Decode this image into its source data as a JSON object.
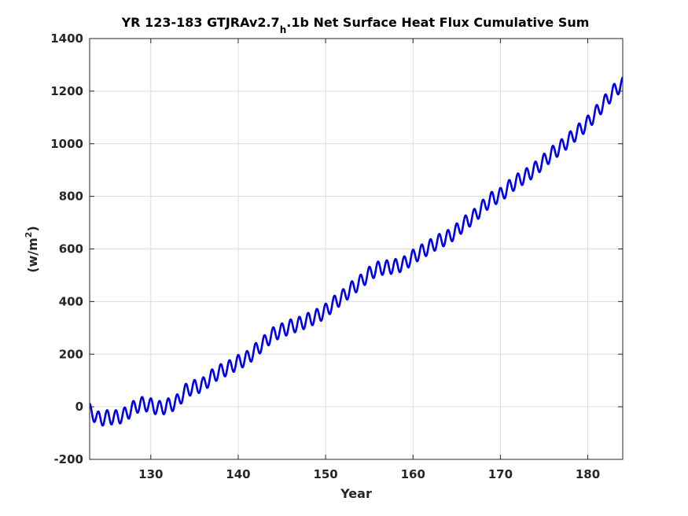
{
  "chart_data": {
    "type": "line",
    "title_parts": {
      "before_subscript": "YR 123-183 GTJRAv2.7",
      "subscript": "h",
      "after_subscript": ".1b Net Surface Heat Flux  Cumulative Sum"
    },
    "xlabel": "Year",
    "ylabel_parts": {
      "base": "(w/m",
      "superscript": "2",
      "close": ")"
    },
    "xlim": [
      123,
      184
    ],
    "ylim": [
      -200,
      1400
    ],
    "x_ticks": [
      130,
      140,
      150,
      160,
      170,
      180
    ],
    "y_ticks": [
      -200,
      0,
      200,
      400,
      600,
      800,
      1000,
      1200,
      1400
    ],
    "x_tick_labels": [
      "130",
      "140",
      "150",
      "160",
      "170",
      "180"
    ],
    "y_tick_labels": [
      "-200",
      "0",
      "200",
      "400",
      "600",
      "800",
      "1000",
      "1200",
      "1400"
    ],
    "grid": true,
    "line_color": "#0000e6",
    "seasonal_amplitude": 27,
    "series": [
      {
        "x": [
          123,
          124,
          125,
          126,
          127,
          128,
          129,
          130,
          131,
          132,
          133,
          134,
          135,
          136,
          137,
          138,
          139,
          140,
          141,
          142,
          143,
          144,
          145,
          146,
          147,
          148,
          149,
          150,
          151,
          152,
          153,
          154,
          155,
          156,
          157,
          158,
          159,
          160,
          161,
          162,
          163,
          164,
          165,
          166,
          167,
          168,
          169,
          170,
          171,
          172,
          173,
          174,
          175,
          176,
          177,
          178,
          179,
          180,
          181,
          182,
          183,
          184
        ],
        "y": [
          -15,
          -45,
          -40,
          -40,
          -30,
          -5,
          10,
          5,
          -5,
          5,
          20,
          60,
          75,
          85,
          115,
          135,
          150,
          170,
          185,
          215,
          245,
          275,
          290,
          305,
          315,
          330,
          345,
          365,
          395,
          420,
          450,
          475,
          505,
          525,
          530,
          535,
          545,
          570,
          590,
          610,
          630,
          645,
          670,
          700,
          725,
          760,
          790,
          805,
          835,
          860,
          880,
          905,
          935,
          965,
          990,
          1020,
          1050,
          1080,
          1120,
          1160,
          1200,
          1225
        ]
      }
    ]
  }
}
